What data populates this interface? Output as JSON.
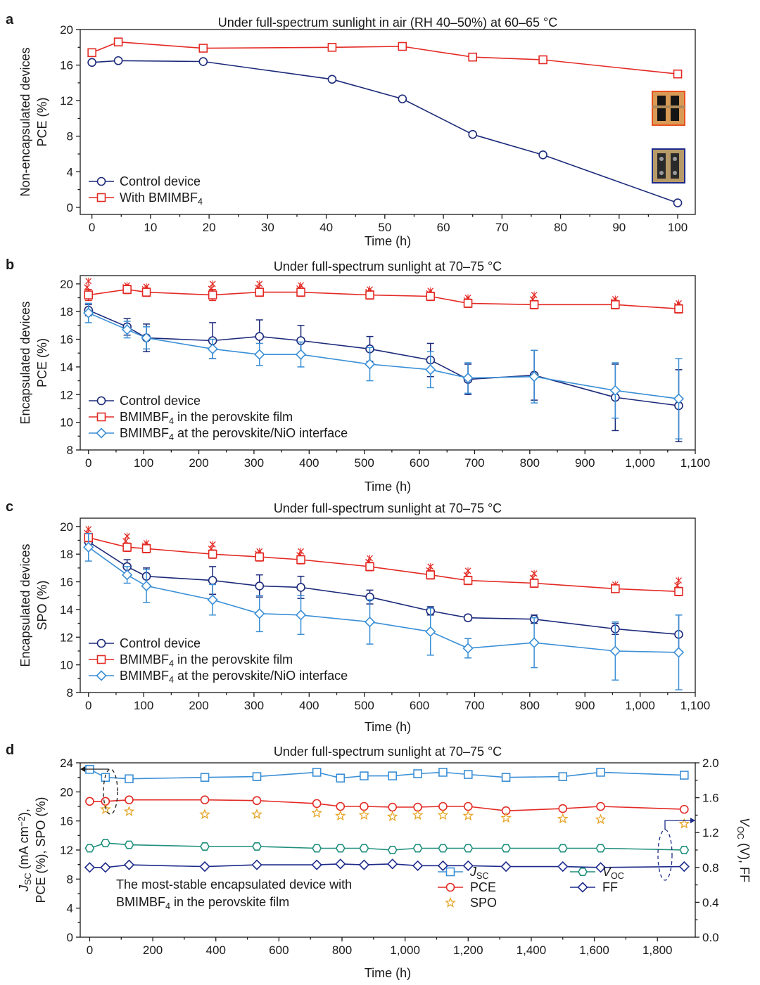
{
  "colors": {
    "navy": "#1c2a7a",
    "red": "#e32a24",
    "blue": "#3a8fd6",
    "teal": "#1f8f7c",
    "orange": "#e6a62a",
    "darkblue": "#1c2a8a"
  },
  "chart_data": [
    {
      "panel_letter": "a",
      "type": "line",
      "title": "Under full-spectrum sunlight in air (RH 40–50%)  at 60–65 °C",
      "xlabel": "Time (h)",
      "ylabel_lines": [
        "Non-encapsulated devices",
        "PCE (%)"
      ],
      "xlim": [
        -2,
        103
      ],
      "ylim": [
        -0.8,
        20
      ],
      "xticks": [
        0,
        10,
        20,
        30,
        40,
        50,
        60,
        70,
        80,
        90,
        100
      ],
      "xtick_labels": [
        "0",
        "10",
        "20",
        "30",
        "40",
        "50",
        "60",
        "70",
        "80",
        "90",
        "100"
      ],
      "yticks": [
        0,
        4,
        8,
        12,
        16,
        20
      ],
      "ytick_labels": [
        "0",
        "4",
        "8",
        "12",
        "16",
        "20"
      ],
      "legend_position": "bottom-left",
      "series": [
        {
          "name": "Control device",
          "marker": "circle",
          "color_key": "navy",
          "x": [
            0,
            4.5,
            19,
            41,
            53,
            65,
            77,
            100
          ],
          "y": [
            16.3,
            16.5,
            16.4,
            14.4,
            12.2,
            8.2,
            5.9,
            0.5
          ]
        },
        {
          "name": "With BMIMBF",
          "sub": "4",
          "marker": "square",
          "color_key": "red",
          "x": [
            0,
            4.5,
            19,
            41,
            53,
            65,
            77,
            100
          ],
          "y": [
            17.4,
            18.6,
            17.9,
            18.0,
            18.1,
            16.9,
            16.6,
            15.0
          ]
        }
      ]
    },
    {
      "panel_letter": "b",
      "type": "line",
      "title": "Under full-spectrum sunlight at 70–75 °C",
      "xlabel": "Time (h)",
      "ylabel_lines": [
        "Encapsulated devices",
        "PCE (%)"
      ],
      "xlim": [
        -15,
        1100
      ],
      "ylim": [
        8,
        20.6
      ],
      "xticks": [
        0,
        100,
        200,
        300,
        400,
        500,
        600,
        700,
        800,
        900,
        1000,
        1100
      ],
      "xtick_labels": [
        "0",
        "100",
        "200",
        "300",
        "400",
        "500",
        "600",
        "700",
        "800",
        "900",
        "1,000",
        "1,100"
      ],
      "yticks": [
        8,
        10,
        12,
        14,
        16,
        18,
        20
      ],
      "ytick_labels": [
        "8",
        "10",
        "12",
        "14",
        "16",
        "18",
        "20"
      ],
      "legend_position": "bottom-left",
      "series": [
        {
          "name": "Control device",
          "marker": "circle",
          "color_key": "navy",
          "x": [
            0,
            70,
            105,
            225,
            310,
            385,
            510,
            620,
            688,
            808,
            955,
            1070
          ],
          "y": [
            18.1,
            16.9,
            16.1,
            15.9,
            16.2,
            15.9,
            15.3,
            14.5,
            13.1,
            13.4,
            11.8,
            11.2
          ],
          "err": [
            0.4,
            0.6,
            1.0,
            1.3,
            1.2,
            1.1,
            0.9,
            1.2,
            1.1,
            1.8,
            2.4,
            2.6
          ]
        },
        {
          "name": "BMIMBF",
          "sub": "4",
          "suffix": " in the perovskite film",
          "marker": "square",
          "color_key": "red",
          "x": [
            0,
            70,
            105,
            225,
            310,
            385,
            510,
            620,
            688,
            808,
            955,
            1070
          ],
          "y": [
            19.2,
            19.6,
            19.4,
            19.2,
            19.4,
            19.4,
            19.2,
            19.1,
            18.6,
            18.5,
            18.5,
            18.2
          ],
          "err": [
            0.4,
            0.3,
            0.3,
            0.4,
            0.3,
            0.3,
            0.3,
            0.3,
            0.3,
            0.3,
            0.3,
            0.3
          ],
          "scatter": [
            20.2,
            19.9,
            19.8,
            20.0,
            20.0,
            19.9,
            19.6,
            19.5,
            19.0,
            19.2,
            18.9,
            18.6
          ]
        },
        {
          "name": "BMIMBF",
          "sub": "4",
          "suffix": " at the perovskite/NiO interface",
          "marker": "diamond",
          "color_key": "blue",
          "x": [
            0,
            70,
            105,
            225,
            310,
            385,
            510,
            620,
            688,
            808,
            955,
            1070
          ],
          "y": [
            17.9,
            16.7,
            16.1,
            15.3,
            14.9,
            14.9,
            14.2,
            13.8,
            13.2,
            13.3,
            12.3,
            11.7
          ],
          "err": [
            0.7,
            0.6,
            0.8,
            0.7,
            0.8,
            0.9,
            1.2,
            1.3,
            1.1,
            1.9,
            2.0,
            2.9
          ]
        }
      ]
    },
    {
      "panel_letter": "c",
      "type": "line",
      "title": "Under full-spectrum sunlight at 70–75 °C",
      "xlabel": "Time (h)",
      "ylabel_lines": [
        "Encapsulated devices",
        "SPO (%)"
      ],
      "xlim": [
        -15,
        1100
      ],
      "ylim": [
        8,
        20.6
      ],
      "xticks": [
        0,
        100,
        200,
        300,
        400,
        500,
        600,
        700,
        800,
        900,
        1000,
        1100
      ],
      "xtick_labels": [
        "0",
        "100",
        "200",
        "300",
        "400",
        "500",
        "600",
        "700",
        "800",
        "900",
        "1,000",
        "1,100"
      ],
      "yticks": [
        8,
        10,
        12,
        14,
        16,
        18,
        20
      ],
      "ytick_labels": [
        "8",
        "10",
        "12",
        "14",
        "16",
        "18",
        "20"
      ],
      "legend_position": "bottom-left",
      "series": [
        {
          "name": "Control device",
          "marker": "circle",
          "color_key": "navy",
          "x": [
            0,
            70,
            105,
            225,
            310,
            385,
            510,
            620,
            688,
            808,
            955,
            1070
          ],
          "y": [
            18.9,
            17.1,
            16.4,
            16.1,
            15.7,
            15.6,
            14.9,
            13.9,
            13.4,
            13.3,
            12.6,
            12.2
          ],
          "err": [
            0.4,
            0.5,
            0.6,
            1.0,
            0.8,
            0.8,
            0.5,
            0.3,
            0.2,
            0.3,
            0.4,
            1.4
          ]
        },
        {
          "name": "BMIMBF",
          "sub": "4",
          "suffix": " in the perovskite film",
          "marker": "square",
          "color_key": "red",
          "x": [
            0,
            70,
            105,
            225,
            310,
            385,
            510,
            620,
            688,
            808,
            955,
            1070
          ],
          "y": [
            19.2,
            18.5,
            18.4,
            18.0,
            17.8,
            17.6,
            17.1,
            16.5,
            16.1,
            15.9,
            15.5,
            15.3
          ],
          "err": [
            0.3,
            0.3,
            0.3,
            0.3,
            0.3,
            0.3,
            0.3,
            0.3,
            0.3,
            0.3,
            0.2,
            0.3
          ],
          "scatter": [
            19.8,
            19.3,
            18.8,
            18.7,
            18.2,
            18.2,
            17.7,
            17.1,
            16.8,
            16.6,
            15.8,
            16.1
          ]
        },
        {
          "name": "BMIMBF",
          "sub": "4",
          "suffix": " at the perovskite/NiO interface",
          "marker": "diamond",
          "color_key": "blue",
          "x": [
            0,
            70,
            105,
            225,
            310,
            385,
            510,
            620,
            688,
            808,
            955,
            1070
          ],
          "y": [
            18.5,
            16.5,
            15.7,
            14.7,
            13.7,
            13.6,
            13.1,
            12.4,
            11.2,
            11.6,
            11.0,
            10.9
          ],
          "err": [
            1.0,
            0.6,
            1.2,
            1.1,
            1.3,
            1.4,
            1.6,
            1.7,
            0.7,
            1.8,
            2.1,
            2.7
          ]
        }
      ]
    },
    {
      "panel_letter": "d",
      "type": "line",
      "title": "Under full-spectrum sunlight at 70–75 °C",
      "xlabel": "Time (h)",
      "ylabel_left_lines": [
        "J",
        "SC",
        " (mA cm",
        "−2",
        "),",
        "PCE (%), SPO (%)"
      ],
      "ylabel_right": [
        "V",
        "OC",
        " (V), FF"
      ],
      "xlim": [
        -30,
        1920
      ],
      "ylim_left": [
        0,
        24
      ],
      "ylim_right": [
        0,
        2.0
      ],
      "xticks": [
        0,
        200,
        400,
        600,
        800,
        1000,
        1200,
        1400,
        1600,
        1800
      ],
      "xtick_labels": [
        "0",
        "200",
        "400",
        "600",
        "800",
        "1,000",
        "1,200",
        "1,400",
        "1,600",
        "1,800"
      ],
      "yticks_left": [
        0,
        4,
        8,
        12,
        16,
        20,
        24
      ],
      "ytick_labels_left": [
        "0",
        "4",
        "8",
        "12",
        "16",
        "20",
        "24"
      ],
      "yticks_right": [
        0,
        0.4,
        0.8,
        1.2,
        1.6,
        2.0
      ],
      "ytick_labels_right": [
        "0.0",
        "0.4",
        "0.8",
        "1.2",
        "1.6",
        "2.0"
      ],
      "annotation_lines": [
        "The most-stable encapsulated device with",
        "BMIMBF",
        "4",
        " in the perovskite film"
      ],
      "series": [
        {
          "name": "J",
          "sub": "SC",
          "axis": "left",
          "marker": "square",
          "color_key": "blue",
          "italic": true,
          "x": [
            0,
            50,
            125,
            365,
            530,
            720,
            795,
            870,
            960,
            1040,
            1120,
            1200,
            1320,
            1500,
            1620,
            1885
          ],
          "y": [
            23.1,
            22.0,
            21.8,
            22.0,
            22.1,
            22.7,
            21.9,
            22.2,
            22.2,
            22.5,
            22.7,
            22.4,
            22.0,
            22.1,
            22.7,
            22.3
          ]
        },
        {
          "name": "PCE",
          "axis": "left",
          "marker": "circle",
          "color_key": "red",
          "x": [
            0,
            50,
            125,
            365,
            530,
            720,
            795,
            870,
            960,
            1040,
            1120,
            1200,
            1320,
            1500,
            1620,
            1885
          ],
          "y": [
            18.7,
            18.7,
            18.9,
            18.9,
            18.8,
            18.4,
            18.0,
            18.0,
            17.9,
            17.9,
            18.0,
            18.0,
            17.4,
            17.7,
            18.0,
            17.6
          ]
        },
        {
          "name": "SPO",
          "axis": "left",
          "marker": "star",
          "color_key": "orange",
          "line": false,
          "x": [
            50,
            125,
            365,
            530,
            720,
            795,
            870,
            960,
            1040,
            1120,
            1200,
            1320,
            1500,
            1620,
            1885
          ],
          "y": [
            17.6,
            17.3,
            16.9,
            16.9,
            17.1,
            16.7,
            16.8,
            16.6,
            16.8,
            16.8,
            16.7,
            16.4,
            16.3,
            16.2,
            15.6
          ]
        },
        {
          "name": "V",
          "sub": "OC",
          "axis": "right",
          "marker": "hexagon",
          "color_key": "teal",
          "italic": true,
          "x": [
            0,
            50,
            125,
            365,
            530,
            720,
            795,
            870,
            960,
            1040,
            1120,
            1200,
            1320,
            1500,
            1620,
            1885
          ],
          "y": [
            1.02,
            1.08,
            1.06,
            1.04,
            1.04,
            1.02,
            1.02,
            1.02,
            1.0,
            1.02,
            1.02,
            1.02,
            1.02,
            1.02,
            1.02,
            1.0
          ]
        },
        {
          "name": "FF",
          "axis": "right",
          "marker": "diamond",
          "color_key": "darkblue",
          "x": [
            0,
            50,
            125,
            365,
            530,
            720,
            795,
            870,
            960,
            1040,
            1120,
            1200,
            1320,
            1500,
            1620,
            1885
          ],
          "y": [
            0.8,
            0.8,
            0.83,
            0.81,
            0.83,
            0.83,
            0.84,
            0.83,
            0.84,
            0.82,
            0.82,
            0.82,
            0.81,
            0.81,
            0.8,
            0.81
          ]
        }
      ]
    }
  ]
}
